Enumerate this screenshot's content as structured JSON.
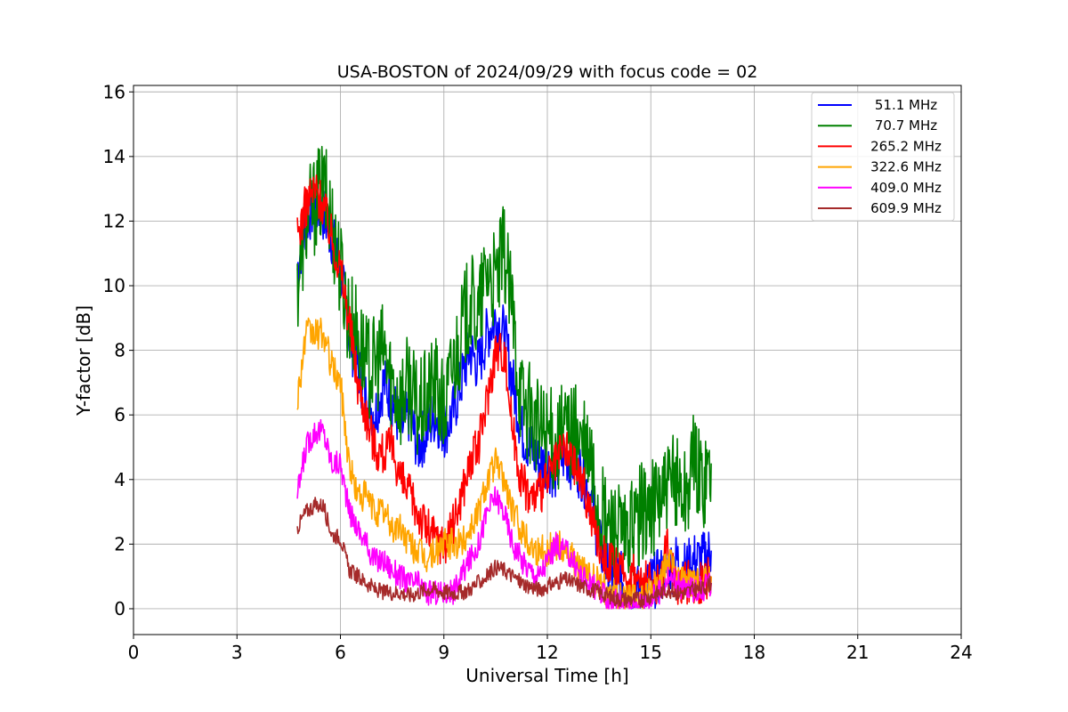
{
  "chart_data": {
    "type": "line",
    "title": "USA-BOSTON of 2024/09/29 with focus code = 02",
    "xlabel": "Universal Time [h]",
    "ylabel": "Y-factor [dB]",
    "xlim": [
      0,
      24
    ],
    "ylim": [
      -0.8,
      16.2
    ],
    "xticks": [
      0,
      3,
      6,
      9,
      12,
      15,
      18,
      21,
      24
    ],
    "yticks": [
      0,
      2,
      4,
      6,
      8,
      10,
      12,
      14,
      16
    ],
    "grid": true,
    "legend_position": "top-right",
    "series": [
      {
        "name": "51.1 MHz",
        "color": "#0000ff",
        "x": [
          4.75,
          5.0,
          5.25,
          5.5,
          5.75,
          6.0,
          6.25,
          6.5,
          6.75,
          7.0,
          7.25,
          7.5,
          7.75,
          8.0,
          8.25,
          8.5,
          8.75,
          9.0,
          9.25,
          9.5,
          9.75,
          10.0,
          10.25,
          10.5,
          10.75,
          11.0,
          11.25,
          11.5,
          11.75,
          12.0,
          12.25,
          12.5,
          12.75,
          13.0,
          13.25,
          13.5,
          13.75,
          14.0,
          14.25,
          14.5,
          14.75,
          15.0,
          15.25,
          15.5,
          15.75,
          16.0,
          16.25,
          16.5,
          16.75
        ],
        "y": [
          10.5,
          12.0,
          12.5,
          12.2,
          11.5,
          10.5,
          8.5,
          7.5,
          6.5,
          6.0,
          7.0,
          6.5,
          5.5,
          6.0,
          5.0,
          5.5,
          6.0,
          5.5,
          6.0,
          7.0,
          8.0,
          7.5,
          8.5,
          9.0,
          8.5,
          7.0,
          5.5,
          5.0,
          4.5,
          4.5,
          4.2,
          4.8,
          4.5,
          4.2,
          3.5,
          2.0,
          1.2,
          1.0,
          0.8,
          0.5,
          0.5,
          0.8,
          1.0,
          1.2,
          1.5,
          1.2,
          1.5,
          1.5,
          1.8
        ]
      },
      {
        "name": "70.7 MHz",
        "color": "#008000",
        "x": [
          4.75,
          5.0,
          5.25,
          5.5,
          5.75,
          6.0,
          6.25,
          6.5,
          6.75,
          7.0,
          7.25,
          7.5,
          7.75,
          8.0,
          8.25,
          8.5,
          8.75,
          9.0,
          9.25,
          9.5,
          9.75,
          10.0,
          10.25,
          10.5,
          10.75,
          11.0,
          11.25,
          11.5,
          11.75,
          12.0,
          12.25,
          12.5,
          12.75,
          13.0,
          13.25,
          13.5,
          13.75,
          14.0,
          14.25,
          14.5,
          14.75,
          15.0,
          15.25,
          15.5,
          15.75,
          16.0,
          16.25,
          16.5,
          16.75
        ],
        "y": [
          10.0,
          12.0,
          12.5,
          13.0,
          12.0,
          10.5,
          9.0,
          8.5,
          7.5,
          7.5,
          8.0,
          7.0,
          6.5,
          7.0,
          6.0,
          6.5,
          7.0,
          6.0,
          7.5,
          8.5,
          9.5,
          9.0,
          10.5,
          10.0,
          11.0,
          9.0,
          6.5,
          6.0,
          5.5,
          5.5,
          5.0,
          5.5,
          5.5,
          5.0,
          4.5,
          3.0,
          2.5,
          2.5,
          2.0,
          2.5,
          3.0,
          3.0,
          3.5,
          3.5,
          4.0,
          3.5,
          4.5,
          4.0,
          4.5
        ]
      },
      {
        "name": "265.2 MHz",
        "color": "#ff0000",
        "x": [
          4.75,
          5.0,
          5.25,
          5.5,
          5.75,
          6.0,
          6.25,
          6.5,
          6.75,
          7.0,
          7.25,
          7.5,
          7.75,
          8.0,
          8.25,
          8.5,
          8.75,
          9.0,
          9.25,
          9.5,
          9.75,
          10.0,
          10.25,
          10.5,
          10.75,
          11.0,
          11.25,
          11.5,
          11.75,
          12.0,
          12.25,
          12.5,
          12.75,
          13.0,
          13.25,
          13.5,
          13.75,
          14.0,
          14.25,
          14.5,
          14.75,
          15.0,
          15.25,
          15.5,
          15.75,
          16.0,
          16.25,
          16.5,
          16.75
        ],
        "y": [
          11.5,
          12.5,
          13.0,
          12.5,
          11.5,
          10.5,
          9.0,
          7.0,
          6.0,
          5.0,
          4.8,
          5.0,
          4.0,
          3.5,
          3.0,
          2.5,
          2.2,
          2.0,
          2.5,
          3.5,
          4.5,
          5.0,
          6.5,
          8.0,
          8.0,
          5.5,
          4.0,
          3.5,
          3.5,
          4.0,
          4.5,
          5.0,
          4.5,
          4.0,
          3.0,
          2.0,
          1.5,
          1.2,
          1.0,
          1.0,
          0.8,
          0.8,
          0.8,
          2.0,
          0.8,
          0.8,
          0.8,
          0.8,
          1.0
        ]
      },
      {
        "name": "322.6 MHz",
        "color": "#ffa500",
        "x": [
          4.75,
          5.0,
          5.25,
          5.5,
          5.75,
          6.0,
          6.25,
          6.5,
          6.75,
          7.0,
          7.25,
          7.5,
          7.75,
          8.0,
          8.25,
          8.5,
          8.75,
          9.0,
          9.25,
          9.5,
          9.75,
          10.0,
          10.25,
          10.5,
          10.75,
          11.0,
          11.25,
          11.5,
          11.75,
          12.0,
          12.25,
          12.5,
          12.75,
          13.0,
          13.25,
          13.5,
          13.75,
          14.0,
          14.25,
          14.5,
          14.75,
          15.0,
          15.25,
          15.5,
          15.75,
          16.0,
          16.25,
          16.5,
          16.75
        ],
        "y": [
          6.5,
          8.5,
          8.5,
          8.5,
          7.5,
          7.0,
          4.5,
          3.5,
          3.5,
          3.0,
          3.0,
          2.5,
          2.5,
          2.0,
          1.8,
          1.5,
          1.8,
          2.0,
          2.0,
          2.0,
          2.5,
          3.0,
          4.0,
          4.5,
          4.0,
          3.0,
          2.5,
          2.0,
          1.8,
          1.8,
          2.0,
          1.8,
          1.5,
          1.2,
          1.0,
          0.8,
          0.5,
          0.4,
          0.3,
          0.3,
          0.3,
          0.5,
          0.8,
          1.5,
          1.0,
          0.8,
          0.8,
          0.8,
          1.0
        ]
      },
      {
        "name": "409.0 MHz",
        "color": "#ff00ff",
        "x": [
          4.75,
          5.0,
          5.25,
          5.5,
          5.75,
          6.0,
          6.25,
          6.5,
          6.75,
          7.0,
          7.25,
          7.5,
          7.75,
          8.0,
          8.25,
          8.5,
          8.75,
          9.0,
          9.25,
          9.5,
          9.75,
          10.0,
          10.25,
          10.5,
          10.75,
          11.0,
          11.25,
          11.5,
          11.75,
          12.0,
          12.25,
          12.5,
          12.75,
          13.0,
          13.25,
          13.5,
          13.75,
          14.0,
          14.25,
          14.5,
          14.75,
          15.0,
          15.25,
          15.5,
          15.75,
          16.0,
          16.25,
          16.5,
          16.75
        ],
        "y": [
          3.5,
          5.0,
          5.5,
          5.5,
          4.5,
          4.5,
          3.0,
          2.5,
          2.0,
          1.5,
          1.5,
          1.2,
          1.0,
          0.8,
          0.8,
          0.5,
          0.5,
          0.5,
          0.5,
          1.0,
          1.5,
          2.0,
          3.0,
          3.5,
          3.0,
          2.0,
          1.5,
          1.2,
          1.0,
          1.5,
          2.0,
          1.8,
          1.5,
          1.0,
          0.8,
          0.5,
          0.3,
          0.2,
          0.1,
          0.1,
          0.2,
          0.3,
          0.5,
          1.0,
          0.8,
          0.6,
          0.6,
          0.6,
          0.8
        ]
      },
      {
        "name": "609.9 MHz",
        "color": "#a52a2a",
        "x": [
          4.75,
          5.0,
          5.25,
          5.5,
          5.75,
          6.0,
          6.25,
          6.5,
          6.75,
          7.0,
          7.25,
          7.5,
          7.75,
          8.0,
          8.25,
          8.5,
          8.75,
          9.0,
          9.25,
          9.5,
          9.75,
          10.0,
          10.25,
          10.5,
          10.75,
          11.0,
          11.25,
          11.5,
          11.75,
          12.0,
          12.25,
          12.5,
          12.75,
          13.0,
          13.25,
          13.5,
          13.75,
          14.0,
          14.25,
          14.5,
          14.75,
          15.0,
          15.25,
          15.5,
          15.75,
          16.0,
          16.25,
          16.5,
          16.75
        ],
        "y": [
          2.5,
          3.0,
          3.2,
          3.2,
          2.3,
          2.2,
          1.2,
          1.0,
          0.8,
          0.6,
          0.5,
          0.5,
          0.5,
          0.4,
          0.5,
          0.6,
          0.6,
          0.5,
          0.5,
          0.5,
          0.6,
          0.8,
          1.0,
          1.3,
          1.2,
          1.0,
          0.8,
          0.7,
          0.6,
          0.7,
          0.8,
          0.9,
          0.8,
          0.7,
          0.6,
          0.5,
          0.4,
          0.3,
          0.3,
          0.3,
          0.3,
          0.4,
          0.5,
          0.6,
          0.5,
          0.5,
          0.6,
          0.6,
          0.8
        ]
      }
    ]
  }
}
